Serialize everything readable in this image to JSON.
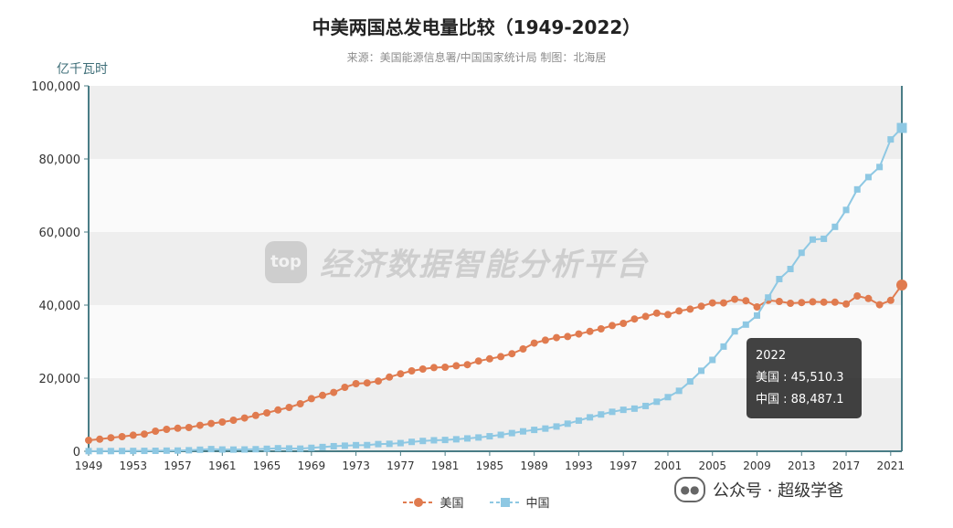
{
  "chart_data": {
    "type": "line",
    "title": "中美两国总发电量比较（1949-2022）",
    "subtitle": "来源：美国能源信息署/中国国家统计局 制图：北海居",
    "ylabel": "亿千瓦时",
    "ylim": [
      0,
      100000
    ],
    "yticks": [
      "0",
      "20,000",
      "40,000",
      "60,000",
      "80,000",
      "100,000"
    ],
    "xticks": [
      "1949",
      "1953",
      "1957",
      "1961",
      "1965",
      "1969",
      "1973",
      "1977",
      "1981",
      "1985",
      "1989",
      "1993",
      "1997",
      "2001",
      "2005",
      "2009",
      "2013",
      "2017",
      "2021"
    ],
    "x": [
      1949,
      1950,
      1951,
      1952,
      1953,
      1954,
      1955,
      1956,
      1957,
      1958,
      1959,
      1960,
      1961,
      1962,
      1963,
      1964,
      1965,
      1966,
      1967,
      1968,
      1969,
      1970,
      1971,
      1972,
      1973,
      1974,
      1975,
      1976,
      1977,
      1978,
      1979,
      1980,
      1981,
      1982,
      1983,
      1984,
      1985,
      1986,
      1987,
      1988,
      1989,
      1990,
      1991,
      1992,
      1993,
      1994,
      1995,
      1996,
      1997,
      1998,
      1999,
      2000,
      2001,
      2002,
      2003,
      2004,
      2005,
      2006,
      2007,
      2008,
      2009,
      2010,
      2011,
      2012,
      2013,
      2014,
      2015,
      2016,
      2017,
      2018,
      2019,
      2020,
      2021,
      2022
    ],
    "series": [
      {
        "name": "美国",
        "color": "#e07b4f",
        "marker": "circle",
        "values": [
          3000,
          3300,
          3700,
          4000,
          4400,
          4700,
          5500,
          6000,
          6300,
          6500,
          7100,
          7600,
          8000,
          8500,
          9100,
          9800,
          10500,
          11300,
          12000,
          13000,
          14400,
          15300,
          16100,
          17500,
          18500,
          18700,
          19200,
          20300,
          21200,
          22000,
          22500,
          22900,
          23000,
          23400,
          23700,
          24700,
          25300,
          25900,
          26700,
          28000,
          29600,
          30400,
          31100,
          31400,
          32100,
          32800,
          33500,
          34400,
          35000,
          36200,
          36900,
          37800,
          37400,
          38400,
          38900,
          39700,
          40600,
          40600,
          41600,
          41200,
          39500,
          41300,
          41000,
          40500,
          40700,
          40900,
          40800,
          40800,
          40300,
          42500,
          41800,
          40100,
          41300,
          45510.3
        ]
      },
      {
        "name": "中国",
        "color": "#8ec8e3",
        "marker": "square",
        "values": [
          43,
          46,
          58,
          73,
          92,
          110,
          123,
          166,
          193,
          275,
          423,
          594,
          480,
          458,
          490,
          560,
          676,
          825,
          774,
          716,
          940,
          1159,
          1384,
          1524,
          1668,
          1688,
          1958,
          2031,
          2234,
          2566,
          2820,
          3006,
          3093,
          3277,
          3514,
          3770,
          4107,
          4495,
          4973,
          5452,
          5848,
          6212,
          6775,
          7539,
          8395,
          9281,
          10069,
          10794,
          11342,
          11670,
          12393,
          13556,
          14808,
          16540,
          19106,
          22033,
          25003,
          28657,
          32816,
          34669,
          37147,
          42072,
          47130,
          49876,
          54316,
          57945,
          58146,
          61425,
          66044,
          71661,
          75034,
          77791,
          85343,
          88487.1
        ]
      }
    ],
    "tooltip": {
      "year": "2022",
      "lines": [
        "美国 : 45,510.3",
        "中国 : 88,487.1"
      ]
    },
    "grid": true,
    "legend_position": "bottom-center"
  },
  "watermark": {
    "logo_text": "top",
    "text": "经济数据智能分析平台"
  },
  "brand": {
    "icon_name": "wechat-icon",
    "text": "公众号 · 超级学爸"
  }
}
